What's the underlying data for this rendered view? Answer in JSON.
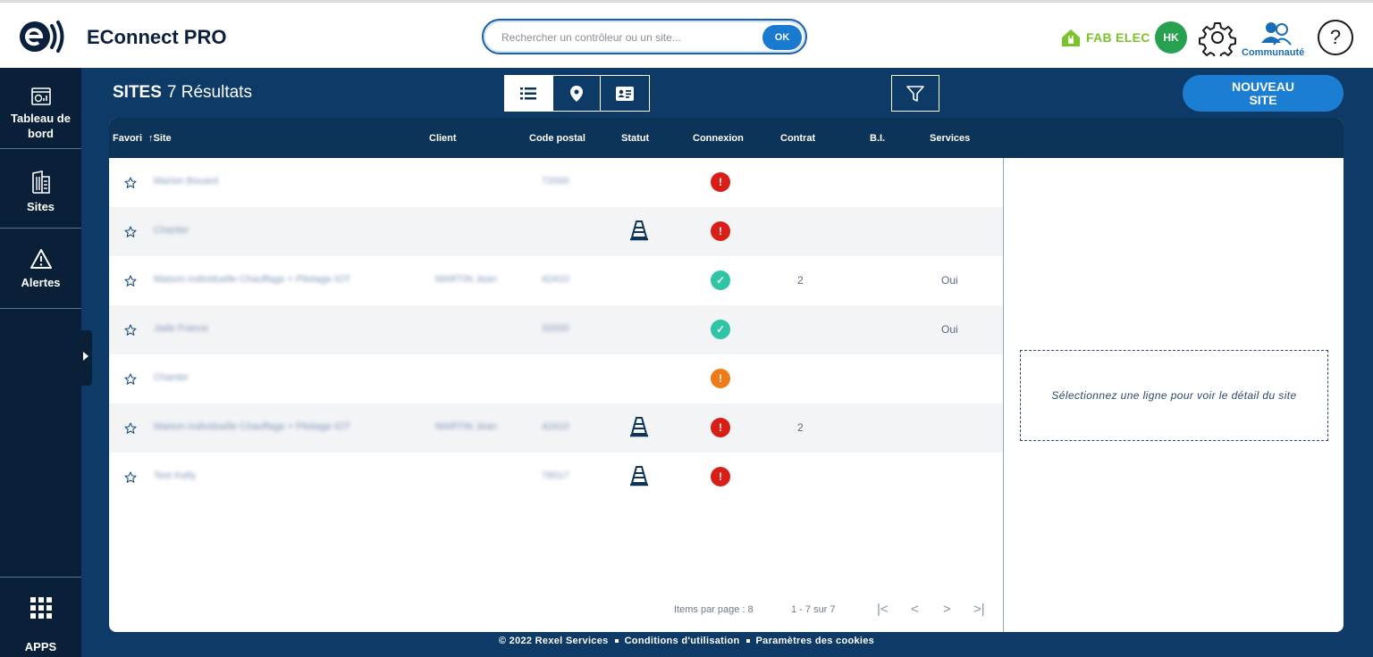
{
  "header": {
    "app_title": "EConnect PRO",
    "search_placeholder": "Rechercher un contrôleur ou un site...",
    "search_button": "OK",
    "brand": "FAB ELEC",
    "user_initials": "HK",
    "community_label": "Communauté",
    "help_label": "?"
  },
  "sidebar": {
    "items": [
      {
        "label": "Tableau de bord",
        "icon": "dashboard-icon"
      },
      {
        "label": "Sites",
        "icon": "building-icon"
      },
      {
        "label": "Alertes",
        "icon": "alert-triangle-icon"
      }
    ],
    "apps_label": "APPS"
  },
  "page": {
    "title_bold": "SITES",
    "results": "7 Résultats",
    "new_site_line1": "NOUVEAU",
    "new_site_line2": "SITE"
  },
  "table": {
    "columns": [
      "Favori",
      "↑Site",
      "Client",
      "Code postal",
      "Statut",
      "Connexion",
      "Contrat",
      "B.I.",
      "Services"
    ],
    "rows": [
      {
        "site": "Marion Bouard",
        "client": "",
        "code_postal": "72000",
        "statut": "",
        "connexion": "error",
        "contrat": "",
        "bi": "",
        "services": ""
      },
      {
        "site": "Chanter",
        "client": "",
        "code_postal": "",
        "statut": "work",
        "connexion": "error",
        "contrat": "",
        "bi": "",
        "services": ""
      },
      {
        "site": "Maison individuelle Chauffage + Pilotage IOT",
        "client": "MARTIN Jean",
        "code_postal": "42410",
        "statut": "",
        "connexion": "ok",
        "contrat": "2",
        "bi": "",
        "services": "Oui"
      },
      {
        "site": "Jade France",
        "client": "",
        "code_postal": "32000",
        "statut": "",
        "connexion": "ok",
        "contrat": "",
        "bi": "",
        "services": "Oui"
      },
      {
        "site": "Chanter",
        "client": "",
        "code_postal": "",
        "statut": "",
        "connexion": "warn",
        "contrat": "",
        "bi": "",
        "services": ""
      },
      {
        "site": "Maison individuelle Chauffage + Pilotage IOT",
        "client": "MARTIN Jean",
        "code_postal": "42410",
        "statut": "work",
        "connexion": "error",
        "contrat": "2",
        "bi": "",
        "services": ""
      },
      {
        "site": "Test Kelly",
        "client": "",
        "code_postal": "78017",
        "statut": "work",
        "connexion": "error",
        "contrat": "",
        "bi": "",
        "services": ""
      }
    ]
  },
  "detail": {
    "empty_message": "Sélectionnez une ligne pour voir le détail du site"
  },
  "pagination": {
    "items_per_page": "Items par page : 8",
    "range": "1 - 7 sur 7"
  },
  "footer": {
    "copyright": "© 2022 Rexel Services",
    "terms": "Conditions d'utilisation",
    "cookies": "Paramètres des cookies"
  },
  "colors": {
    "primary_dark": "#0c3459",
    "accent_blue": "#1c7ed2",
    "error": "#d91e18",
    "warning": "#ef7a1a",
    "ok": "#2ec4a6",
    "brand_green": "#7cc22a"
  }
}
